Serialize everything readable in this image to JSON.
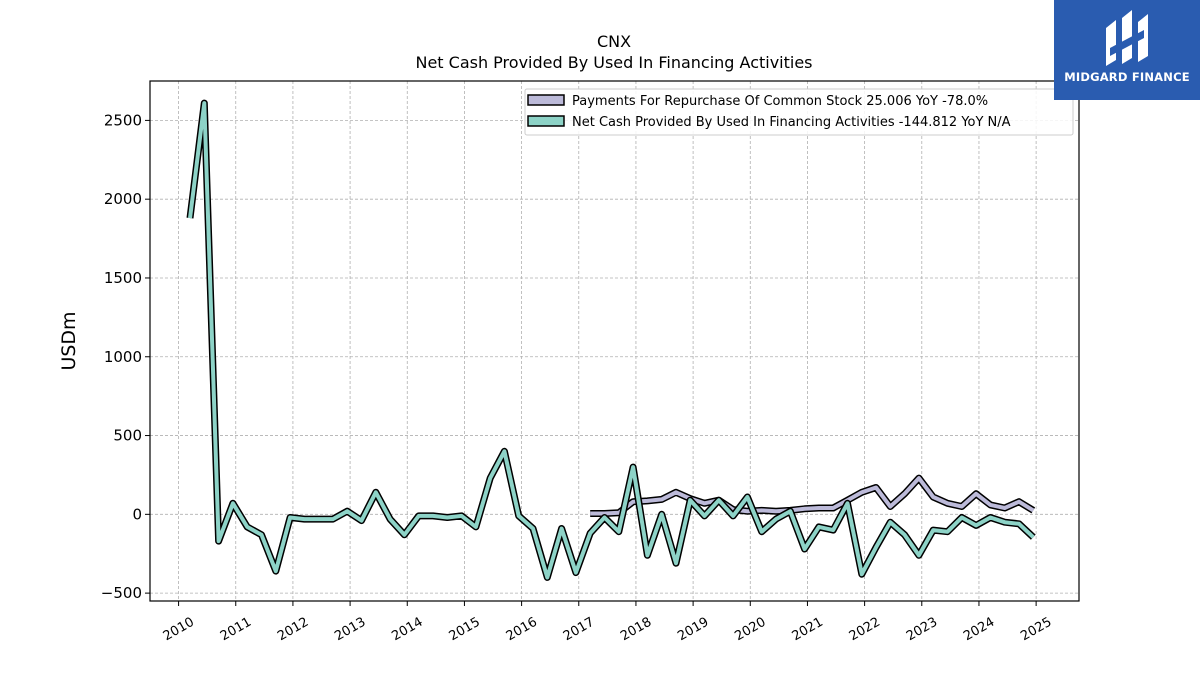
{
  "brand": {
    "logo_text": "MIDGARD FINANCE",
    "color": "#2a5cb0"
  },
  "chart_data": {
    "type": "line",
    "title": "CNX",
    "subtitle": "Net Cash Provided By Used In Financing Activities",
    "ylabel": "USDm",
    "xlabel": "",
    "ylim": [
      -550,
      2750
    ],
    "yticks": [
      -500,
      0,
      500,
      1000,
      1500,
      2000,
      2500
    ],
    "xlim": [
      2009.5,
      2025.75
    ],
    "xticks": [
      "2010",
      "2011",
      "2012",
      "2013",
      "2014",
      "2015",
      "2016",
      "2017",
      "2018",
      "2019",
      "2020",
      "2021",
      "2022",
      "2023",
      "2024",
      "2025"
    ],
    "grid": true,
    "legend_position": "top-right",
    "series": [
      {
        "name": "Payments For Repurchase Of Common Stock  25.006 YoY -78.0%",
        "color": "#bcbad9",
        "x": [
          2017.2,
          2017.45,
          2017.7,
          2017.95,
          2018.2,
          2018.45,
          2018.7,
          2018.95,
          2019.2,
          2019.45,
          2019.7,
          2019.95,
          2020.2,
          2020.45,
          2020.7,
          2020.95,
          2021.2,
          2021.45,
          2021.7,
          2021.95,
          2022.2,
          2022.45,
          2022.7,
          2022.95,
          2023.2,
          2023.45,
          2023.7,
          2023.95,
          2024.2,
          2024.45,
          2024.7,
          2024.95
        ],
        "y": [
          5,
          5,
          10,
          80,
          85,
          95,
          140,
          100,
          70,
          90,
          30,
          20,
          25,
          20,
          25,
          35,
          40,
          40,
          90,
          140,
          170,
          50,
          130,
          230,
          110,
          70,
          50,
          130,
          60,
          40,
          80,
          25
        ]
      },
      {
        "name": "Net Cash Provided By Used In Financing Activities  -144.812 YoY N/A",
        "color": "#8dd3c7",
        "x": [
          2010.2,
          2010.45,
          2010.7,
          2010.95,
          2011.2,
          2011.45,
          2011.7,
          2011.95,
          2012.2,
          2012.45,
          2012.7,
          2012.95,
          2013.2,
          2013.45,
          2013.7,
          2013.95,
          2014.2,
          2014.45,
          2014.7,
          2014.95,
          2015.2,
          2015.45,
          2015.7,
          2015.95,
          2016.2,
          2016.45,
          2016.7,
          2016.95,
          2017.2,
          2017.45,
          2017.7,
          2017.95,
          2018.2,
          2018.45,
          2018.7,
          2018.95,
          2019.2,
          2019.45,
          2019.7,
          2019.95,
          2020.2,
          2020.45,
          2020.7,
          2020.95,
          2021.2,
          2021.45,
          2021.7,
          2021.95,
          2022.2,
          2022.45,
          2022.7,
          2022.95,
          2023.2,
          2023.45,
          2023.7,
          2023.95,
          2024.2,
          2024.45,
          2024.7,
          2024.95
        ],
        "y": [
          1880,
          2610,
          -170,
          70,
          -80,
          -130,
          -360,
          -20,
          -30,
          -30,
          -30,
          20,
          -40,
          140,
          -30,
          -130,
          -10,
          -10,
          -20,
          -10,
          -80,
          230,
          400,
          -10,
          -90,
          -400,
          -90,
          -370,
          -120,
          -20,
          -110,
          300,
          -260,
          0,
          -310,
          90,
          -10,
          90,
          -10,
          110,
          -110,
          -30,
          20,
          -220,
          -80,
          -100,
          70,
          -380,
          -210,
          -50,
          -130,
          -260,
          -100,
          -110,
          -20,
          -70,
          -20,
          -50,
          -60,
          -145
        ]
      }
    ]
  }
}
